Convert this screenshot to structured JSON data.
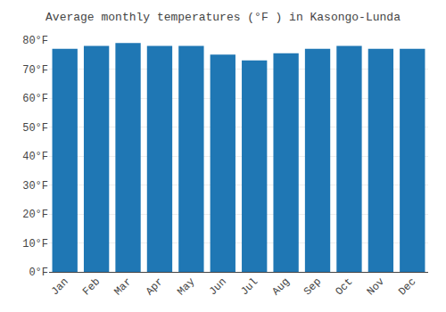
{
  "chart_data": {
    "type": "bar",
    "title": "Average monthly temperatures (°F ) in Kasongo-Lunda",
    "categories": [
      "Jan",
      "Feb",
      "Mar",
      "Apr",
      "May",
      "Jun",
      "Jul",
      "Aug",
      "Sep",
      "Oct",
      "Nov",
      "Dec"
    ],
    "values": [
      77,
      78,
      79,
      78,
      78,
      75,
      73,
      75.5,
      77,
      78,
      77,
      77
    ],
    "ylim": [
      0,
      80
    ],
    "yticks": [
      {
        "value": 0,
        "label": "0°F"
      },
      {
        "value": 10,
        "label": "10°F"
      },
      {
        "value": 20,
        "label": "20°F"
      },
      {
        "value": 30,
        "label": "30°F"
      },
      {
        "value": 40,
        "label": "40°F"
      },
      {
        "value": 50,
        "label": "50°F"
      },
      {
        "value": 60,
        "label": "60°F"
      },
      {
        "value": 70,
        "label": "70°F"
      },
      {
        "value": 80,
        "label": "80°F"
      }
    ],
    "grid": true
  }
}
